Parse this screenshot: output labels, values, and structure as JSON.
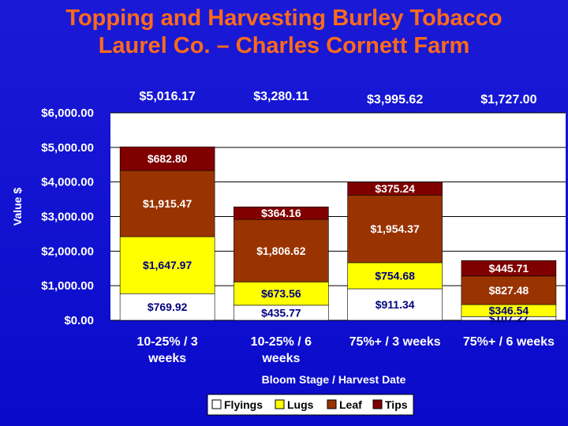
{
  "title_line1": "Topping and Harvesting Burley Tobacco",
  "title_line2": "Laurel Co. – Charles Cornett Farm",
  "colors": {
    "Flyings": "#ffffff",
    "Lugs": "#ffff00",
    "Leaf": "#993300",
    "Tips": "#800000"
  },
  "chart_data": {
    "type": "bar",
    "stacked": true,
    "xlabel": "Bloom Stage / Harvest Date",
    "ylabel": "Value $",
    "ylim": [
      0,
      6000
    ],
    "yticks": [
      0,
      1000,
      2000,
      3000,
      4000,
      5000,
      6000
    ],
    "ytick_labels": [
      "$0.00",
      "$1,000.00",
      "$2,000.00",
      "$3,000.00",
      "$4,000.00",
      "$5,000.00",
      "$6,000.00"
    ],
    "categories": [
      [
        "10-25% / 3",
        "weeks"
      ],
      [
        "10-25% / 6",
        "weeks"
      ],
      [
        "75%+ / 3 weeks"
      ],
      [
        "75%+ / 6 weeks"
      ]
    ],
    "totals": [
      "$5,016.17",
      "$3,280.11",
      "$3,995.62",
      "$1,727.00"
    ],
    "series": [
      {
        "name": "Flyings",
        "values": [
          769.92,
          435.77,
          911.34,
          107.27
        ],
        "labels": [
          "$769.92",
          "$435.77",
          "$911.34",
          "$107.27"
        ]
      },
      {
        "name": "Lugs",
        "values": [
          1647.97,
          673.56,
          754.68,
          346.54
        ],
        "labels": [
          "$1,647.97",
          "$673.56",
          "$754.68",
          "$346.54"
        ]
      },
      {
        "name": "Leaf",
        "values": [
          1915.47,
          1806.62,
          1954.37,
          827.48
        ],
        "labels": [
          "$1,915.47",
          "$1,806.62",
          "$1,954.37",
          "$827.48"
        ]
      },
      {
        "name": "Tips",
        "values": [
          682.8,
          364.16,
          375.24,
          445.71
        ],
        "labels": [
          "$682.80",
          "$364.16",
          "$375.24",
          "$445.71"
        ]
      }
    ],
    "legend": [
      "Flyings",
      "Lugs",
      "Leaf",
      "Tips"
    ],
    "legend_position": "bottom"
  }
}
